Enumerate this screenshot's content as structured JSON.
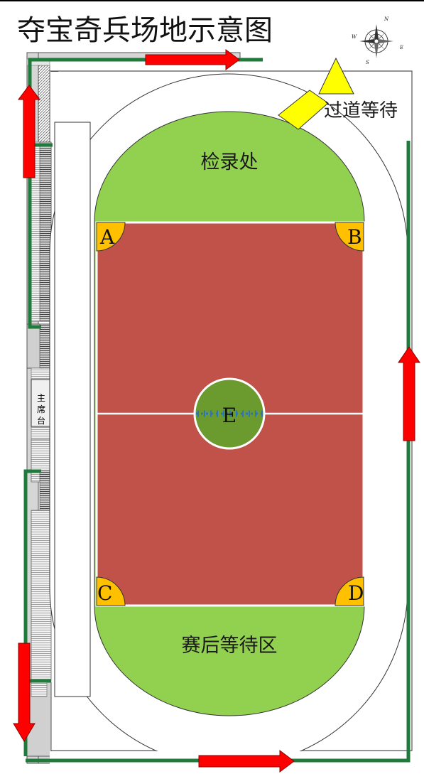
{
  "title": "夺宝奇兵场地示意图",
  "compass": {
    "north": "N",
    "east": "E",
    "south": "S",
    "west": "W"
  },
  "zones": {
    "checkin": "检录处",
    "after_match_wait": "赛后等待区",
    "aisle_wait": "过道等待",
    "main_stand": [
      "主",
      "席",
      "台"
    ]
  },
  "corners": {
    "a": "A",
    "b": "B",
    "c": "C",
    "d": "D"
  },
  "center_label": "E",
  "colors": {
    "field_red": "#C0524A",
    "grass_green": "#92D050",
    "center_green": "#6B9A2E",
    "corner_orange": "#FFC000",
    "arrow_red": "#FF0000",
    "path_green": "#1F7A3C",
    "aisle_yellow": "#FFFF00",
    "center_line_blue": "#2E75B6"
  }
}
